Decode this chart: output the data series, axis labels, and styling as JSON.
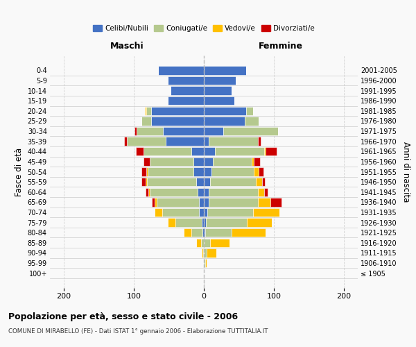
{
  "age_groups": [
    "100+",
    "95-99",
    "90-94",
    "85-89",
    "80-84",
    "75-79",
    "70-74",
    "65-69",
    "60-64",
    "55-59",
    "50-54",
    "45-49",
    "40-44",
    "35-39",
    "30-34",
    "25-29",
    "20-24",
    "15-19",
    "10-14",
    "5-9",
    "0-4"
  ],
  "birth_years": [
    "≤ 1905",
    "1906-1910",
    "1911-1915",
    "1916-1920",
    "1921-1925",
    "1926-1930",
    "1931-1935",
    "1936-1940",
    "1941-1945",
    "1946-1950",
    "1951-1955",
    "1956-1960",
    "1961-1965",
    "1966-1970",
    "1971-1975",
    "1976-1980",
    "1981-1985",
    "1986-1990",
    "1991-1995",
    "1996-2000",
    "2001-2005"
  ],
  "male": {
    "celibi": [
      0,
      0,
      0,
      0,
      2,
      3,
      7,
      7,
      9,
      11,
      15,
      15,
      18,
      55,
      58,
      75,
      75,
      52,
      48,
      52,
      65
    ],
    "coniugati": [
      0,
      0,
      1,
      4,
      16,
      38,
      52,
      60,
      68,
      70,
      65,
      62,
      68,
      55,
      38,
      14,
      7,
      0,
      0,
      0,
      0
    ],
    "vedovi": [
      0,
      0,
      2,
      7,
      11,
      11,
      11,
      3,
      2,
      2,
      2,
      0,
      0,
      0,
      0,
      0,
      2,
      0,
      0,
      0,
      0
    ],
    "divorziati": [
      0,
      0,
      0,
      0,
      0,
      0,
      0,
      4,
      4,
      6,
      7,
      9,
      11,
      4,
      3,
      0,
      0,
      0,
      0,
      0,
      0
    ]
  },
  "female": {
    "nubili": [
      0,
      0,
      0,
      0,
      2,
      3,
      5,
      7,
      7,
      9,
      11,
      13,
      16,
      7,
      28,
      58,
      60,
      44,
      40,
      46,
      60
    ],
    "coniugate": [
      0,
      2,
      4,
      9,
      38,
      58,
      65,
      70,
      70,
      65,
      60,
      55,
      70,
      70,
      78,
      20,
      10,
      0,
      0,
      0,
      0
    ],
    "vedove": [
      0,
      2,
      14,
      28,
      48,
      36,
      38,
      18,
      9,
      9,
      7,
      3,
      2,
      0,
      0,
      0,
      0,
      0,
      0,
      0,
      0
    ],
    "divorziate": [
      0,
      0,
      0,
      0,
      0,
      0,
      0,
      16,
      5,
      4,
      7,
      9,
      16,
      4,
      0,
      0,
      0,
      0,
      0,
      0,
      0
    ]
  },
  "colors": {
    "celibi": "#4472c4",
    "coniugati": "#b5c98e",
    "vedovi": "#ffc000",
    "divorziati": "#cc0000"
  },
  "xlim": [
    -220,
    220
  ],
  "xticks": [
    -200,
    -100,
    0,
    100,
    200
  ],
  "xticklabels": [
    "200",
    "100",
    "0",
    "100",
    "200"
  ],
  "title": "Popolazione per età, sesso e stato civile - 2006",
  "subtitle": "COMUNE DI MIRABELLO (FE) - Dati ISTAT 1° gennaio 2006 - Elaborazione TUTTITALIA.IT",
  "ylabel_left": "Fasce di età",
  "ylabel_right": "Anni di nascita",
  "header_left": "Maschi",
  "header_right": "Femmine",
  "bg_color": "#f9f9f9",
  "grid_color": "#cccccc",
  "bar_height": 0.85
}
